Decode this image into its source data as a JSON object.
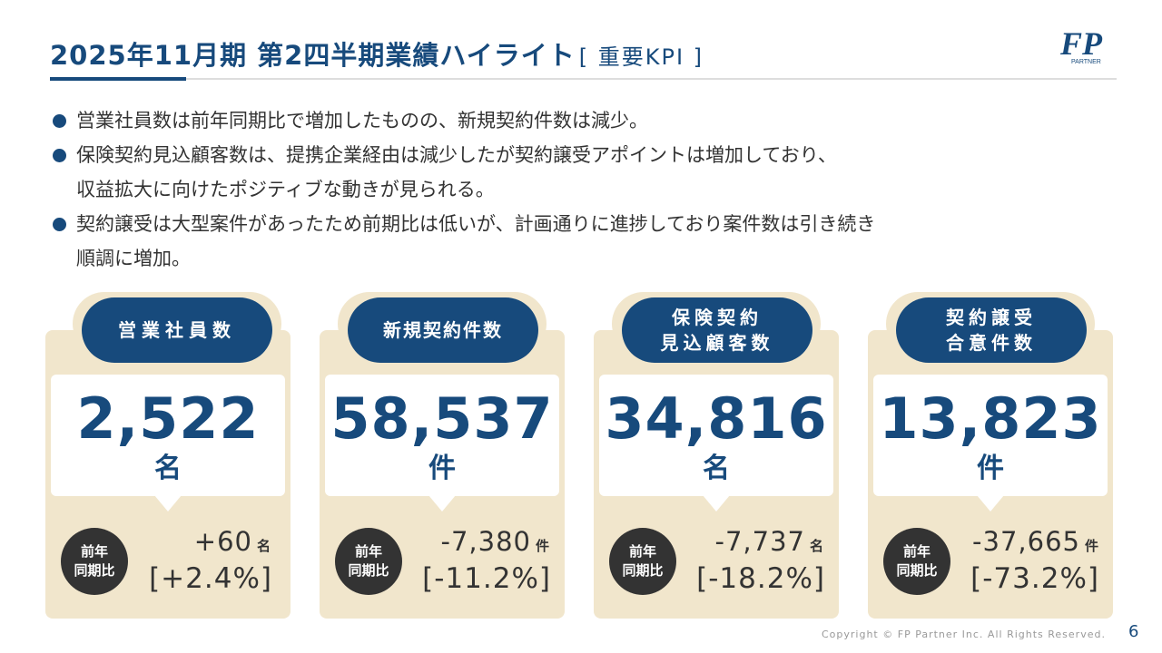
{
  "header": {
    "title": "2025年11月期 第2四半期業績ハイライト",
    "subtitle": "[ 重要KPI ]",
    "logo_text": "FP",
    "logo_sub": "PARTNER"
  },
  "bullets": [
    {
      "line1": "営業社員数は前年同期比で増加したものの、新規契約件数は減少。",
      "line2": ""
    },
    {
      "line1": "保険契約見込顧客数は、提携企業経由は減少したが契約譲受アポイントは増加しており、",
      "line2": "収益拡大に向けたポジティブな動きが見られる。"
    },
    {
      "line1": "契約譲受は大型案件があったため前期比は低いが、計画通りに進捗しており案件数は引き続き",
      "line2": "順調に増加。"
    }
  ],
  "kpis": [
    {
      "label1": "営業社員数",
      "label2": "",
      "value": "2,522",
      "unit": "名",
      "yoy_label1": "前年",
      "yoy_label2": "同期比",
      "delta": "+60",
      "delta_unit": "名",
      "pct": "[+2.4%]"
    },
    {
      "label1": "新規契約件数",
      "label2": "",
      "value": "58,537",
      "unit": "件",
      "yoy_label1": "前年",
      "yoy_label2": "同期比",
      "delta": "-7,380",
      "delta_unit": "件",
      "pct": "[-11.2%]"
    },
    {
      "label1": "保険契約",
      "label2": "見込顧客数",
      "value": "34,816",
      "unit": "名",
      "yoy_label1": "前年",
      "yoy_label2": "同期比",
      "delta": "-7,737",
      "delta_unit": "名",
      "pct": "[-18.2%]"
    },
    {
      "label1": "契約譲受",
      "label2": "合意件数",
      "value": "13,823",
      "unit": "件",
      "yoy_label1": "前年",
      "yoy_label2": "同期比",
      "delta": "-37,665",
      "delta_unit": "件",
      "pct": "[-73.2%]"
    }
  ],
  "footer": {
    "copyright": "Copyright © FP Partner Inc. All Rights Reserved.",
    "page_number": "6"
  },
  "colors": {
    "accent": "#174a7c",
    "card_bg": "#f1e6cc",
    "dark": "#333333"
  }
}
